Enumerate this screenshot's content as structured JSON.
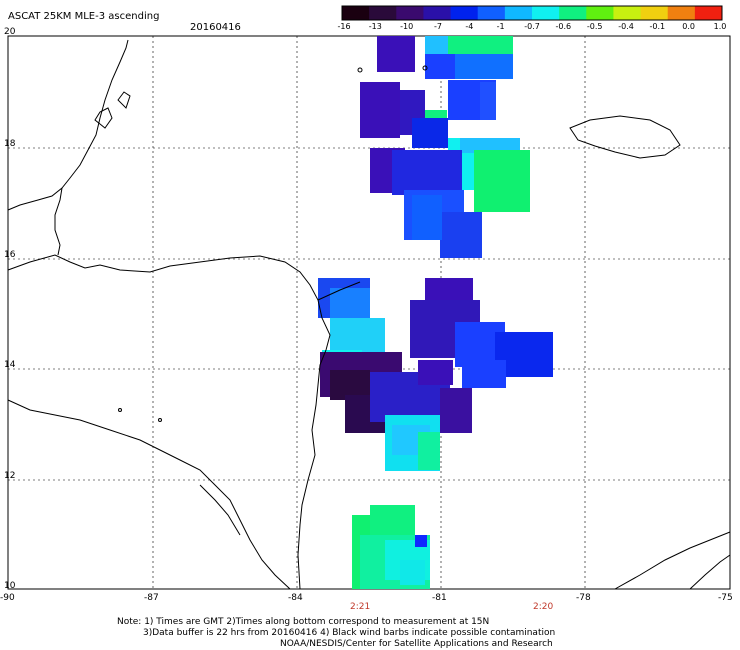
{
  "header": {
    "title": "ASCAT 25KM MLE-3 ascending",
    "date": "20160416"
  },
  "colorbar": {
    "ticks": [
      "-16",
      "-13",
      "-10",
      "-7",
      "-4",
      "-1",
      "-0.7",
      "-0.6",
      "-0.5",
      "-0.4",
      "-0.1",
      "0.0",
      "1.0"
    ],
    "colors": [
      "#1a0010",
      "#2a0a3a",
      "#3a0a6e",
      "#2a10a8",
      "#0022ee",
      "#1060ff",
      "#10b8ff",
      "#10f0f0",
      "#10f080",
      "#60f010",
      "#c8f010",
      "#f0d010",
      "#f08010",
      "#f02010"
    ]
  },
  "axes": {
    "lat_labels": [
      "20",
      "18",
      "16",
      "14",
      "12",
      "10"
    ],
    "lon_labels": [
      "-90",
      "-87",
      "-84",
      "-81",
      "-78",
      "-75"
    ]
  },
  "times": [
    "2:21",
    "2:20"
  ],
  "notes": {
    "line1": "Note: 1) Times are GMT 2)Times along bottom correspond to measurement at 15N",
    "line2": "3)Data buffer is 22 hrs from 20160416 4) Black wind barbs indicate possible contamination",
    "line3": "NOAA/NESDIS/Center for Satellite Applications and Research"
  }
}
